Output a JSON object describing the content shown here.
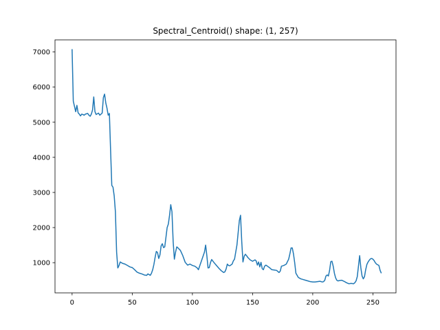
{
  "chart_data": {
    "type": "line",
    "title": "Spectral_Centroid() shape: (1, 257)",
    "xlabel": "",
    "ylabel": "",
    "xlim": [
      -14.2,
      269.2
    ],
    "ylim": [
      140,
      7345
    ],
    "xticks": [
      0,
      50,
      100,
      150,
      200,
      250
    ],
    "yticks": [
      1000,
      2000,
      3000,
      4000,
      5000,
      6000,
      7000
    ],
    "grid": false,
    "series": [
      {
        "color": "#1f77b4",
        "points": [
          [
            0,
            7080
          ],
          [
            1,
            5600
          ],
          [
            2,
            5450
          ],
          [
            3,
            5300
          ],
          [
            4,
            5480
          ],
          [
            5,
            5270
          ],
          [
            6,
            5230
          ],
          [
            7,
            5180
          ],
          [
            8,
            5230
          ],
          [
            9,
            5220
          ],
          [
            10,
            5200
          ],
          [
            11,
            5230
          ],
          [
            12,
            5240
          ],
          [
            13,
            5250
          ],
          [
            14,
            5200
          ],
          [
            15,
            5170
          ],
          [
            16,
            5230
          ],
          [
            17,
            5350
          ],
          [
            18,
            5720
          ],
          [
            19,
            5300
          ],
          [
            20,
            5220
          ],
          [
            21,
            5240
          ],
          [
            22,
            5260
          ],
          [
            23,
            5200
          ],
          [
            24,
            5230
          ],
          [
            25,
            5260
          ],
          [
            26,
            5700
          ],
          [
            27,
            5800
          ],
          [
            28,
            5550
          ],
          [
            29,
            5400
          ],
          [
            30,
            5200
          ],
          [
            31,
            5250
          ],
          [
            32,
            4200
          ],
          [
            33,
            3200
          ],
          [
            34,
            3150
          ],
          [
            35,
            2900
          ],
          [
            36,
            2450
          ],
          [
            37,
            1300
          ],
          [
            38,
            850
          ],
          [
            39,
            920
          ],
          [
            40,
            1020
          ],
          [
            42,
            980
          ],
          [
            44,
            960
          ],
          [
            46,
            920
          ],
          [
            48,
            880
          ],
          [
            50,
            860
          ],
          [
            52,
            800
          ],
          [
            54,
            730
          ],
          [
            56,
            700
          ],
          [
            58,
            680
          ],
          [
            60,
            650
          ],
          [
            62,
            640
          ],
          [
            63,
            680
          ],
          [
            64,
            660
          ],
          [
            65,
            640
          ],
          [
            66,
            700
          ],
          [
            67,
            800
          ],
          [
            68,
            950
          ],
          [
            69,
            1150
          ],
          [
            70,
            1320
          ],
          [
            71,
            1290
          ],
          [
            72,
            1120
          ],
          [
            73,
            1220
          ],
          [
            74,
            1480
          ],
          [
            75,
            1540
          ],
          [
            76,
            1430
          ],
          [
            77,
            1450
          ],
          [
            78,
            1720
          ],
          [
            79,
            2000
          ],
          [
            80,
            2100
          ],
          [
            81,
            2350
          ],
          [
            82,
            2650
          ],
          [
            83,
            2450
          ],
          [
            84,
            1600
          ],
          [
            85,
            1100
          ],
          [
            86,
            1300
          ],
          [
            87,
            1450
          ],
          [
            88,
            1420
          ],
          [
            90,
            1350
          ],
          [
            92,
            1200
          ],
          [
            94,
            1010
          ],
          [
            96,
            930
          ],
          [
            98,
            960
          ],
          [
            100,
            920
          ],
          [
            102,
            900
          ],
          [
            104,
            850
          ],
          [
            105,
            800
          ],
          [
            106,
            900
          ],
          [
            108,
            1100
          ],
          [
            109,
            1200
          ],
          [
            110,
            1300
          ],
          [
            111,
            1500
          ],
          [
            112,
            1200
          ],
          [
            113,
            850
          ],
          [
            114,
            860
          ],
          [
            115,
            1000
          ],
          [
            116,
            1090
          ],
          [
            118,
            1000
          ],
          [
            120,
            920
          ],
          [
            122,
            840
          ],
          [
            124,
            770
          ],
          [
            126,
            720
          ],
          [
            127,
            740
          ],
          [
            128,
            820
          ],
          [
            129,
            960
          ],
          [
            130,
            920
          ],
          [
            131,
            910
          ],
          [
            133,
            960
          ],
          [
            134,
            1050
          ],
          [
            135,
            1100
          ],
          [
            136,
            1300
          ],
          [
            137,
            1500
          ],
          [
            138,
            1850
          ],
          [
            139,
            2200
          ],
          [
            140,
            2350
          ],
          [
            141,
            1600
          ],
          [
            142,
            1020
          ],
          [
            143,
            1180
          ],
          [
            144,
            1240
          ],
          [
            145,
            1200
          ],
          [
            146,
            1150
          ],
          [
            148,
            1080
          ],
          [
            150,
            1040
          ],
          [
            152,
            1080
          ],
          [
            153,
            1050
          ],
          [
            154,
            930
          ],
          [
            155,
            1020
          ],
          [
            156,
            880
          ],
          [
            157,
            1010
          ],
          [
            158,
            830
          ],
          [
            159,
            800
          ],
          [
            160,
            900
          ],
          [
            161,
            930
          ],
          [
            162,
            910
          ],
          [
            164,
            860
          ],
          [
            166,
            800
          ],
          [
            168,
            790
          ],
          [
            170,
            780
          ],
          [
            172,
            720
          ],
          [
            173,
            760
          ],
          [
            174,
            900
          ],
          [
            176,
            920
          ],
          [
            178,
            960
          ],
          [
            180,
            1100
          ],
          [
            181,
            1250
          ],
          [
            182,
            1420
          ],
          [
            183,
            1420
          ],
          [
            184,
            1250
          ],
          [
            185,
            1000
          ],
          [
            186,
            700
          ],
          [
            188,
            580
          ],
          [
            190,
            540
          ],
          [
            192,
            520
          ],
          [
            194,
            500
          ],
          [
            196,
            480
          ],
          [
            198,
            460
          ],
          [
            200,
            450
          ],
          [
            202,
            450
          ],
          [
            204,
            460
          ],
          [
            206,
            470
          ],
          [
            208,
            450
          ],
          [
            209,
            460
          ],
          [
            210,
            500
          ],
          [
            211,
            620
          ],
          [
            212,
            650
          ],
          [
            213,
            620
          ],
          [
            214,
            780
          ],
          [
            215,
            1030
          ],
          [
            216,
            1040
          ],
          [
            217,
            900
          ],
          [
            218,
            700
          ],
          [
            219,
            570
          ],
          [
            220,
            500
          ],
          [
            221,
            480
          ],
          [
            222,
            490
          ],
          [
            224,
            500
          ],
          [
            226,
            470
          ],
          [
            228,
            430
          ],
          [
            230,
            400
          ],
          [
            232,
            410
          ],
          [
            234,
            400
          ],
          [
            235,
            430
          ],
          [
            236,
            480
          ],
          [
            237,
            600
          ],
          [
            238,
            900
          ],
          [
            239,
            1200
          ],
          [
            240,
            850
          ],
          [
            241,
            620
          ],
          [
            242,
            540
          ],
          [
            243,
            600
          ],
          [
            244,
            800
          ],
          [
            245,
            950
          ],
          [
            246,
            1020
          ],
          [
            247,
            1070
          ],
          [
            248,
            1110
          ],
          [
            249,
            1120
          ],
          [
            250,
            1100
          ],
          [
            251,
            1060
          ],
          [
            252,
            1000
          ],
          [
            253,
            960
          ],
          [
            254,
            940
          ],
          [
            255,
            920
          ],
          [
            256,
            780
          ],
          [
            257,
            700
          ]
        ]
      }
    ]
  }
}
